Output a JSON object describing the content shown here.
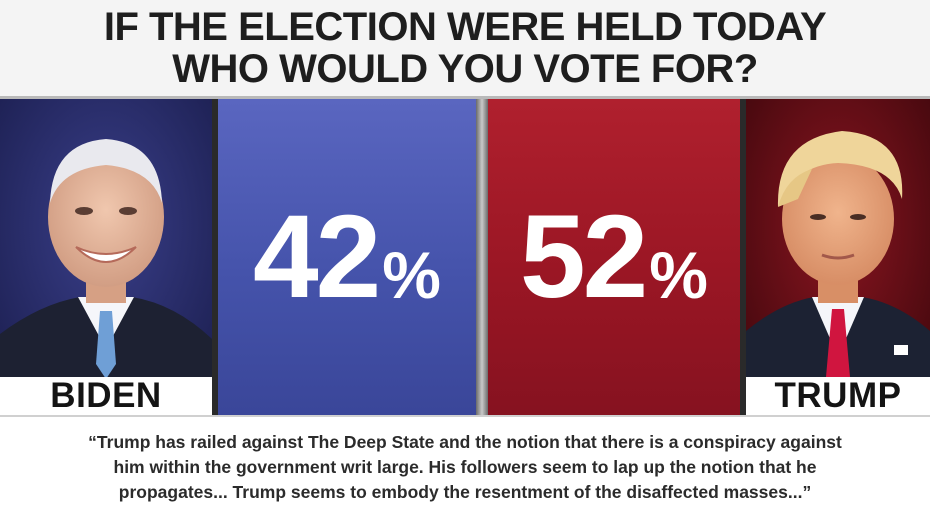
{
  "title": {
    "line1": "IF THE ELECTION WERE HELD TODAY",
    "line2": "WHO WOULD YOU VOTE FOR?"
  },
  "candidates": [
    {
      "name": "BIDEN",
      "percent": "42",
      "percent_sign": "%",
      "percent_value": 42,
      "panel_color": "#4553ab"
    },
    {
      "name": "TRUMP",
      "percent": "52",
      "percent_sign": "%",
      "percent_value": 52,
      "panel_color": "#9a1624"
    }
  ],
  "quote": {
    "line1": "“Trump has railed against The Deep State and the notion that there is a conspiracy against",
    "line2": "him within the government writ large. His followers seem to lap up the notion that he",
    "line3": "propagates... Trump seems to embody the resentment of the disaffected masses...”"
  }
}
